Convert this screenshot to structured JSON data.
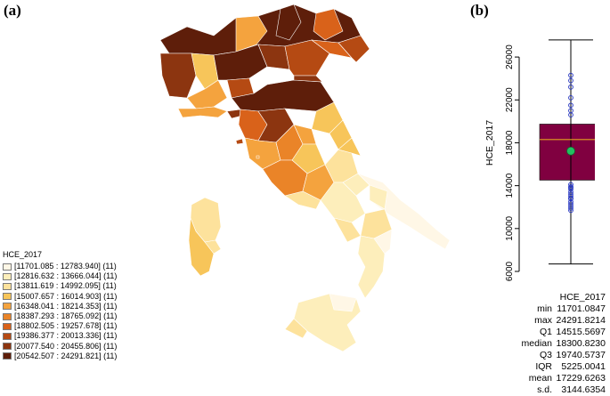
{
  "panels": {
    "a": "(a)",
    "b": "(b)"
  },
  "legend": {
    "title": "HCE_2017",
    "items": [
      {
        "label": "[11701.085 : 12783.940] (11)",
        "color": "#fff7e6"
      },
      {
        "label": "[12816.632 : 13666.044] (11)",
        "color": "#fdeebb"
      },
      {
        "label": "[13811.619 : 14992.095] (11)",
        "color": "#fde29c"
      },
      {
        "label": "[15007.657 : 16014.903] (11)",
        "color": "#f7c55a"
      },
      {
        "label": "[16348.041 : 18214.353] (11)",
        "color": "#f4a33e"
      },
      {
        "label": "[18387.293 : 18765.092] (11)",
        "color": "#ea8428"
      },
      {
        "label": "[18802.505 : 19257.678] (11)",
        "color": "#d9621a"
      },
      {
        "label": "[19386.377 : 20013.336] (11)",
        "color": "#b54a13"
      },
      {
        "label": "[20077.540 : 20455.806] (11)",
        "color": "#8c3510"
      },
      {
        "label": "[20542.507 : 24291.821] (11)",
        "color": "#5e1e0a"
      }
    ]
  },
  "chart_data": {
    "type": "box",
    "ylabel": "HCE_2017",
    "xlabel": "HCE_2017",
    "ylim": [
      6000,
      28000
    ],
    "yticks": [
      6000,
      10000,
      14000,
      18000,
      22000,
      26000
    ],
    "whisker_low": 6700,
    "whisker_high": 27600,
    "q1": 14515.5697,
    "median": 18300.823,
    "q3": 19740.5737,
    "mean": 17229.6263,
    "box_color": "#800040",
    "median_color": "#e0a020",
    "mean_color": "#22c060",
    "points": [
      11701,
      11900,
      12100,
      12300,
      12500,
      12783,
      12816,
      13000,
      13200,
      13400,
      13666,
      13811,
      13900,
      14100,
      20600,
      21000,
      21500,
      22200,
      23200,
      23800,
      24291
    ],
    "stats": [
      {
        "name": "min",
        "value": "11701.0847"
      },
      {
        "name": "max",
        "value": "24291.8214"
      },
      {
        "name": "Q1",
        "value": "14515.5697"
      },
      {
        "name": "median",
        "value": "18300.8230"
      },
      {
        "name": "Q3",
        "value": "19740.5737"
      },
      {
        "name": "IQR",
        "value": "5225.0041"
      },
      {
        "name": "mean",
        "value": "17229.6263"
      },
      {
        "name": "s.d.",
        "value": "3144.6354"
      }
    ]
  }
}
